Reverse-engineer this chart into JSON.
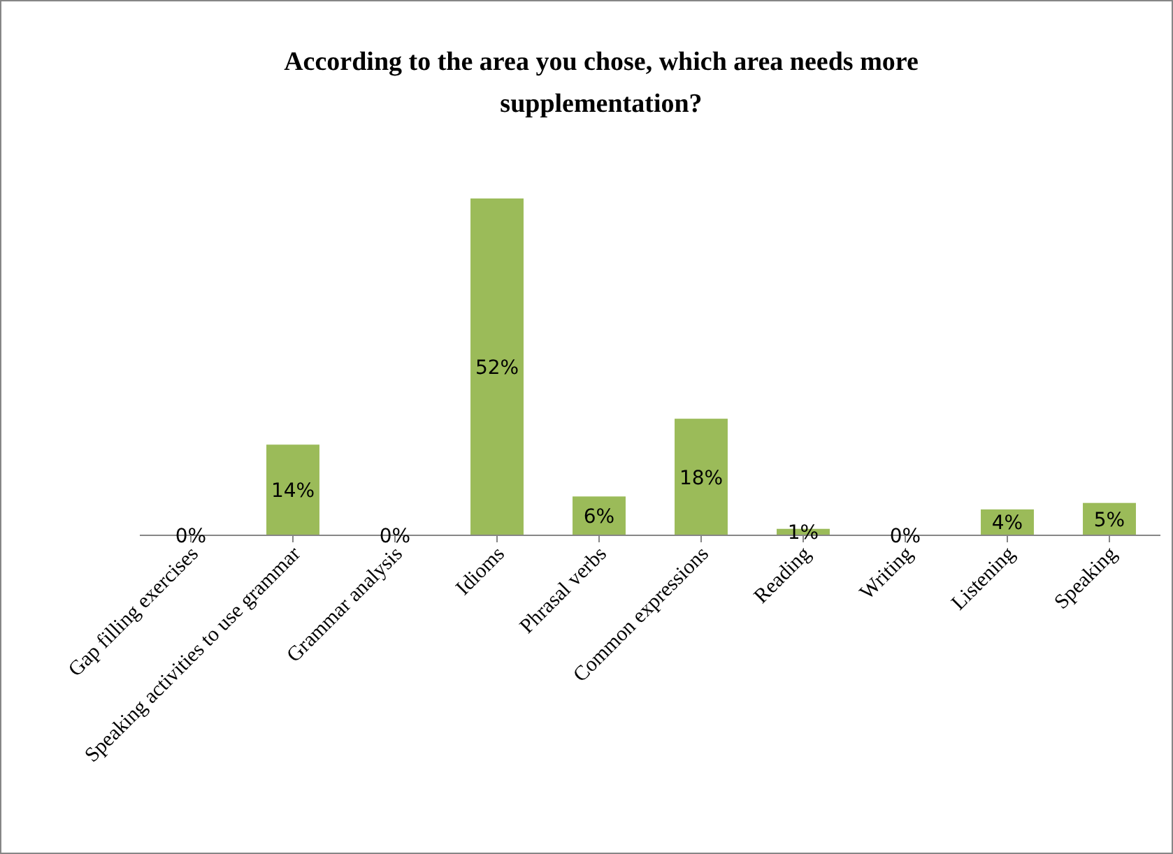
{
  "chart_data": {
    "type": "bar",
    "title": "According to the area you chose, which area needs more supplementation?",
    "categories": [
      "Gap filling exercises",
      "Speaking activities to use  grammar",
      "Grammar analysis",
      "Idioms",
      "Phrasal verbs",
      "Common expressions",
      "Reading",
      "Writing",
      "Listening",
      "Speaking"
    ],
    "values": [
      0,
      14,
      0,
      52,
      6,
      18,
      1,
      0,
      4,
      5
    ],
    "value_labels": [
      "0%",
      "14%",
      "0%",
      "52%",
      "6%",
      "18%",
      "1%",
      "0%",
      "4%",
      "5%"
    ],
    "color": "#9bbb59"
  }
}
